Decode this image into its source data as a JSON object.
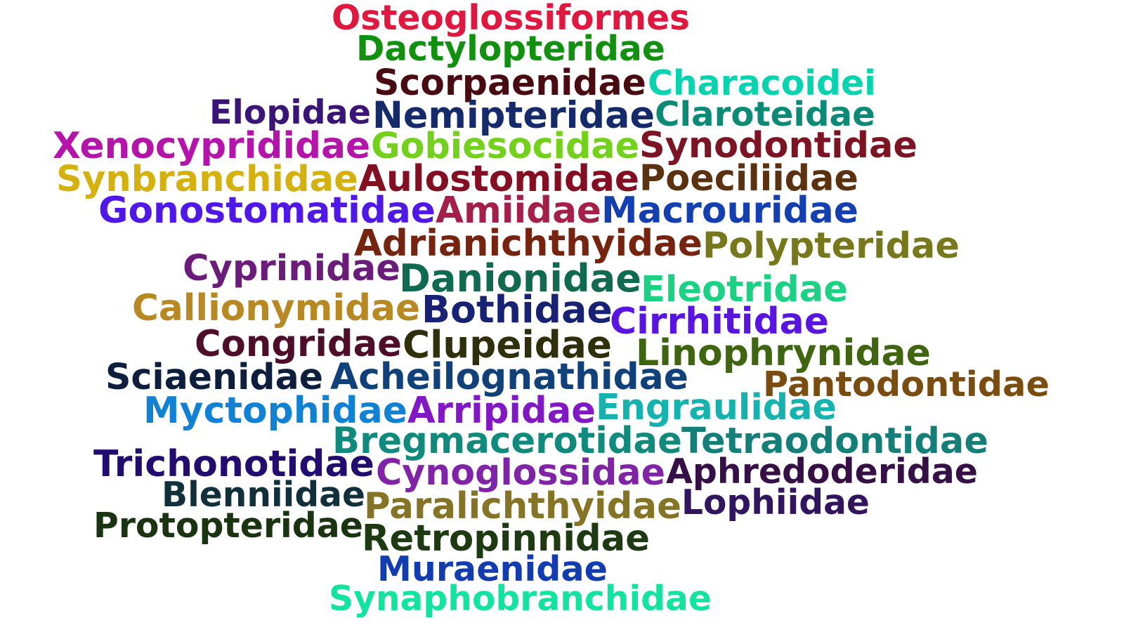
{
  "words": [
    {
      "text": "Osteoglossiformes",
      "color": "#e0173f"
    },
    {
      "text": "Dactylopteridae",
      "color": "#12900f"
    },
    {
      "text": "Scorpaenidae",
      "color": "#4a0a12"
    },
    {
      "text": "Characoidei",
      "color": "#08d3b0"
    },
    {
      "text": "Elopidae",
      "color": "#3a1577"
    },
    {
      "text": "Nemipteridae",
      "color": "#152a6b"
    },
    {
      "text": "Claroteidae",
      "color": "#0b8a75"
    },
    {
      "text": "Xenocyprididae",
      "color": "#b414aa"
    },
    {
      "text": "Gobiesocidae",
      "color": "#73d11c"
    },
    {
      "text": "Synodontidae",
      "color": "#7d1424"
    },
    {
      "text": "Synbranchidae",
      "color": "#d4b10e"
    },
    {
      "text": "Aulostomidae",
      "color": "#850f22"
    },
    {
      "text": "Poeciliidae",
      "color": "#5b3110"
    },
    {
      "text": "Gonostomatidae",
      "color": "#4f18e8"
    },
    {
      "text": "Amiidae",
      "color": "#a4204a"
    },
    {
      "text": "Macrouridae",
      "color": "#133fb0"
    },
    {
      "text": "Adrianichthyidae",
      "color": "#76240f"
    },
    {
      "text": "Polypteridae",
      "color": "#77771b"
    },
    {
      "text": "Cyprinidae",
      "color": "#6b1c7a"
    },
    {
      "text": "Danionidae",
      "color": "#0f6a4f"
    },
    {
      "text": "Eleotridae",
      "color": "#1ad184"
    },
    {
      "text": "Callionymidae",
      "color": "#b88823"
    },
    {
      "text": "Bothidae",
      "color": "#182275"
    },
    {
      "text": "Cirrhitidae",
      "color": "#5a14e0"
    },
    {
      "text": "Congridae",
      "color": "#4e0e2a"
    },
    {
      "text": "Clupeidae",
      "color": "#2f2f0c"
    },
    {
      "text": "Linophrynidae",
      "color": "#3f6510"
    },
    {
      "text": "Sciaenidae",
      "color": "#0e1f3e"
    },
    {
      "text": "Acheilognathidae",
      "color": "#11417a"
    },
    {
      "text": "Pantodontidae",
      "color": "#7a4c10"
    },
    {
      "text": "Myctophidae",
      "color": "#1181d4"
    },
    {
      "text": "Arripidae",
      "color": "#8118c4"
    },
    {
      "text": "Engraulidae",
      "color": "#14b3b0"
    },
    {
      "text": "Bregmacerotidae",
      "color": "#0f8a7d"
    },
    {
      "text": "Tetraodontidae",
      "color": "#137f78"
    },
    {
      "text": "Trichonotidae",
      "color": "#230c70"
    },
    {
      "text": "Cynoglossidae",
      "color": "#8123a7"
    },
    {
      "text": "Aphredoderidae",
      "color": "#350f45"
    },
    {
      "text": "Blenniidae",
      "color": "#11303c"
    },
    {
      "text": "Paralichthyidae",
      "color": "#857425"
    },
    {
      "text": "Lophiidae",
      "color": "#33155f"
    },
    {
      "text": "Protopteridae",
      "color": "#1a3310"
    },
    {
      "text": "Retropinnidae",
      "color": "#1d3a12"
    },
    {
      "text": "Muraenidae",
      "color": "#123cb0"
    },
    {
      "text": "Synaphobranchidae",
      "color": "#12e39e"
    }
  ]
}
